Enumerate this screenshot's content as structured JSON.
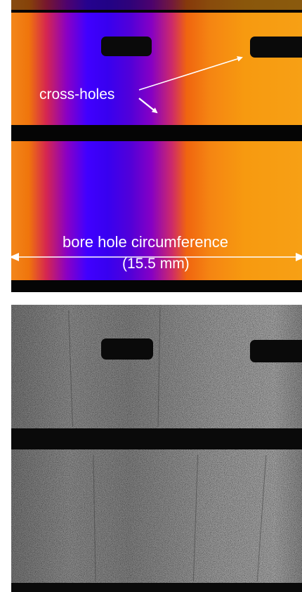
{
  "annotations": {
    "cross_holes": "cross-holes",
    "bore_circumference": "bore hole circumference",
    "dimension": "(15.5 mm)"
  },
  "colors": {
    "arrow": "#ffffff",
    "hole": "#0a0a0a",
    "colormap": "inferno-like (orange–magenta–blue–orange)"
  }
}
